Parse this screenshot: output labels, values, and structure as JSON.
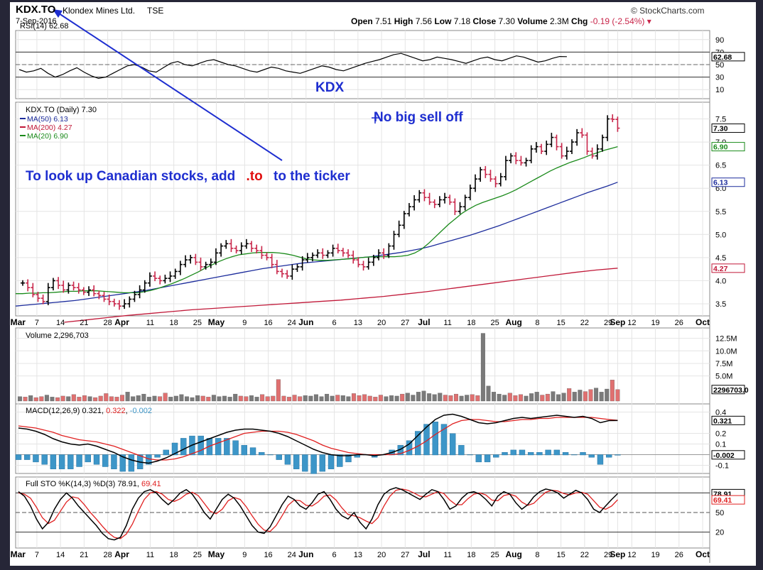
{
  "header": {
    "ticker": "KDX.TO",
    "company": "Klondex Mines Ltd.",
    "exchange": "TSE",
    "date": "7-Sep-2016",
    "watermark": "© StockCharts.com",
    "quote": {
      "open_label": "Open",
      "open": "7.51",
      "high_label": "High",
      "high": "7.56",
      "low_label": "Low",
      "low": "7.18",
      "close_label": "Close",
      "close": "7.30",
      "volume_label": "Volume",
      "volume": "2.3M",
      "chg_label": "Chg",
      "chg": "-0.19 (-2.54%)",
      "chg_arrow": "▾"
    }
  },
  "annotations": {
    "kdx_label": "KDX",
    "no_sell_off": "No big sell off",
    "canadian_tip_1": "To look up Canadian stocks, add",
    "canadian_tip_suffix": ".to",
    "canadian_tip_2": "to the ticker"
  },
  "colors": {
    "price_up": "#000000",
    "price_down": "#c8264a",
    "ma50": "#1c2c9c",
    "ma200": "#c01838",
    "ma20": "#1a8a1a",
    "volume_up": "#7a7a7a",
    "volume_down": "#e07070",
    "macd_hist": "#3d96c8",
    "annotation_blue": "#1e2ed0",
    "annotation_red": "#e01010"
  },
  "chart_data": [
    {
      "type": "line",
      "panel": "rsi",
      "title": "RSI(14) 62.68",
      "ylim": [
        0,
        100
      ],
      "tick_labels": [
        "90",
        "70",
        "50",
        "30",
        "10"
      ],
      "tick_values": [
        90,
        70,
        50,
        30,
        10
      ],
      "reference_lines": [
        70,
        30
      ],
      "last_value": 62.68,
      "last_label": "62.68",
      "values": [
        42,
        38,
        40,
        44,
        36,
        30,
        34,
        40,
        45,
        38,
        32,
        28,
        30,
        36,
        42,
        48,
        50,
        46,
        40,
        38,
        45,
        52,
        55,
        50,
        48,
        52,
        56,
        58,
        54,
        50,
        48,
        44,
        40,
        38,
        42,
        46,
        44,
        40,
        38,
        36,
        40,
        44,
        48,
        46,
        42,
        40,
        44,
        48,
        52,
        55,
        58,
        62,
        66,
        68,
        64,
        60,
        56,
        58,
        62,
        60,
        58,
        55,
        52,
        56,
        60,
        62,
        58,
        56,
        60,
        64,
        62,
        58,
        54,
        56,
        60,
        63,
        62.68
      ]
    },
    {
      "type": "line",
      "panel": "price",
      "title": "KDX.TO (Daily) 7.30",
      "legend": [
        {
          "name": "MA(50) 6.13",
          "color": "#1c2c9c"
        },
        {
          "name": "MA(200) 4.27",
          "color": "#c01838"
        },
        {
          "name": "MA(20) 6.90",
          "color": "#1a8a1a"
        }
      ],
      "ylim": [
        3.3,
        7.8
      ],
      "tick_labels": [
        "7.5",
        "7.0",
        "6.5",
        "6.0",
        "5.5",
        "5.0",
        "4.5",
        "4.0",
        "3.5"
      ],
      "tick_values": [
        7.5,
        7.0,
        6.5,
        6.0,
        5.5,
        5.0,
        4.5,
        4.0,
        3.5
      ],
      "last_labels": [
        {
          "label": "7.30",
          "value": 7.3,
          "color": "#000000"
        },
        {
          "label": "6.90",
          "value": 6.9,
          "color": "#1a8a1a"
        },
        {
          "label": "6.13",
          "value": 6.13,
          "color": "#1c2c9c"
        },
        {
          "label": "4.27",
          "value": 4.27,
          "color": "#c01838"
        }
      ],
      "x_labels": [
        "Mar",
        "7",
        "14",
        "21",
        "28",
        "Apr",
        "11",
        "18",
        "25",
        "May",
        "9",
        "16",
        "24",
        "Jun",
        "6",
        "13",
        "20",
        "27",
        "Jul",
        "11",
        "18",
        "25",
        "Aug",
        "8",
        "15",
        "22",
        "29",
        "Sep",
        "12",
        "19",
        "26",
        "Oct"
      ],
      "x_label_index": [
        0,
        4,
        9,
        14,
        19,
        22,
        28,
        33,
        38,
        42,
        48,
        53,
        58,
        61,
        67,
        72,
        77,
        82,
        86,
        91,
        96,
        101,
        105,
        110,
        115,
        120,
        125,
        127,
        130,
        135,
        140,
        145
      ],
      "n_slots": 147,
      "close": [
        3.95,
        3.85,
        3.7,
        3.62,
        3.55,
        3.85,
        4.0,
        3.9,
        3.8,
        3.9,
        3.85,
        3.8,
        3.75,
        3.8,
        3.72,
        3.68,
        3.6,
        3.55,
        3.5,
        3.45,
        3.5,
        3.6,
        3.7,
        3.8,
        3.95,
        4.1,
        4.05,
        4.0,
        4.05,
        4.1,
        4.2,
        4.35,
        4.45,
        4.5,
        4.4,
        4.3,
        4.35,
        4.4,
        4.6,
        4.75,
        4.8,
        4.7,
        4.65,
        4.75,
        4.8,
        4.7,
        4.65,
        4.55,
        4.5,
        4.35,
        4.2,
        4.15,
        4.1,
        4.25,
        4.3,
        4.45,
        4.5,
        4.55,
        4.6,
        4.55,
        4.6,
        4.7,
        4.65,
        4.6,
        4.55,
        4.45,
        4.35,
        4.3,
        4.4,
        4.5,
        4.6,
        4.55,
        4.75,
        5.0,
        5.2,
        5.45,
        5.6,
        5.75,
        5.9,
        5.8,
        5.7,
        5.65,
        5.75,
        5.8,
        5.7,
        5.5,
        5.6,
        5.8,
        6.0,
        6.2,
        6.4,
        6.3,
        6.2,
        6.1,
        6.25,
        6.6,
        6.7,
        6.6,
        6.55,
        6.6,
        6.85,
        6.9,
        6.8,
        6.95,
        7.1,
        6.9,
        6.7,
        6.8,
        7.0,
        7.2,
        7.15,
        6.8,
        6.7,
        6.85,
        7.1,
        7.5,
        7.49,
        7.3
      ],
      "ma20": [
        3.72,
        3.72,
        3.73,
        3.73,
        3.74,
        3.74,
        3.75,
        3.76,
        3.77,
        3.77,
        3.78,
        3.78,
        3.78,
        3.77,
        3.76,
        3.75,
        3.74,
        3.74,
        3.74,
        3.76,
        3.79,
        3.83,
        3.88,
        3.93,
        3.99,
        4.05,
        4.12,
        4.19,
        4.27,
        4.34,
        4.41,
        4.47,
        4.52,
        4.56,
        4.58,
        4.6,
        4.61,
        4.61,
        4.61,
        4.6,
        4.58,
        4.55,
        4.51,
        4.47,
        4.45,
        4.44,
        4.44,
        4.45,
        4.46,
        4.47,
        4.48,
        4.5,
        4.51,
        4.52,
        4.52,
        4.52,
        4.52,
        4.53,
        4.55,
        4.6,
        4.68,
        4.8,
        4.94,
        5.08,
        5.22,
        5.34,
        5.46,
        5.55,
        5.63,
        5.69,
        5.74,
        5.79,
        5.84,
        5.9,
        5.97,
        6.05,
        6.13,
        6.21,
        6.29,
        6.37,
        6.44,
        6.5,
        6.56,
        6.61,
        6.66,
        6.72,
        6.77,
        6.82,
        6.86,
        6.9
      ],
      "ma50": [
        3.45,
        3.47,
        3.49,
        3.51,
        3.53,
        3.55,
        3.57,
        3.6,
        3.63,
        3.66,
        3.69,
        3.72,
        3.75,
        3.78,
        3.82,
        3.86,
        3.9,
        3.94,
        3.98,
        4.02,
        4.06,
        4.1,
        4.14,
        4.18,
        4.22,
        4.26,
        4.29,
        4.32,
        4.35,
        4.38,
        4.4,
        4.42,
        4.44,
        4.46,
        4.48,
        4.5,
        4.52,
        4.55,
        4.58,
        4.61,
        4.65,
        4.69,
        4.74,
        4.8,
        4.86,
        4.92,
        4.98,
        5.05,
        5.12,
        5.19,
        5.27,
        5.35,
        5.43,
        5.51,
        5.59,
        5.67,
        5.75,
        5.83,
        5.91,
        5.98,
        6.05,
        6.13
      ],
      "ma200": [
        3.1,
        3.15,
        3.2,
        3.25,
        3.29,
        3.33,
        3.37,
        3.4,
        3.43,
        3.46,
        3.49,
        3.52,
        3.55,
        3.58,
        3.62,
        3.66,
        3.71,
        3.76,
        3.82,
        3.88,
        3.94,
        4.0,
        4.06,
        4.12,
        4.18,
        4.23,
        4.27
      ]
    },
    {
      "type": "bar",
      "panel": "volume",
      "title": "Volume 2,296,703",
      "ylim": [
        0,
        14000000
      ],
      "tick_labels": [
        "12.5M",
        "10.0M",
        "7.5M",
        "5.0M"
      ],
      "tick_values": [
        12500000,
        10000000,
        7500000,
        5000000
      ],
      "last_label": "2296703.0",
      "values": [
        0.9,
        0.8,
        1.1,
        0.7,
        0.9,
        1.2,
        0.8,
        0.7,
        1.0,
        0.9,
        1.3,
        0.8,
        1.1,
        0.9,
        0.7,
        1.0,
        1.5,
        0.9,
        0.8,
        1.2,
        1.8,
        0.9,
        1.1,
        1.4,
        0.8,
        1.0,
        0.9,
        1.6,
        0.8,
        1.0,
        1.3,
        0.9,
        0.7,
        1.1,
        1.0,
        0.8,
        1.2,
        0.9,
        1.0,
        0.8,
        1.4,
        1.0,
        0.9,
        1.1,
        0.8,
        1.3,
        0.9,
        1.0,
        4.3,
        1.0,
        0.8,
        1.2,
        0.9,
        1.1,
        1.0,
        1.3,
        0.9,
        1.4,
        1.0,
        1.2,
        1.1,
        0.9,
        1.5,
        1.1,
        1.3,
        1.0,
        0.8,
        1.2,
        0.9,
        1.1,
        1.0,
        1.4,
        1.6,
        1.2,
        1.8,
        2.0,
        1.5,
        1.3,
        1.6,
        1.2,
        1.1,
        1.4,
        1.0,
        1.2,
        1.3,
        1.1,
        13.5,
        3.0,
        1.8,
        1.4,
        1.2,
        1.6,
        1.1,
        1.3,
        1.0,
        1.5,
        1.8,
        1.2,
        1.4,
        1.9,
        1.3,
        1.6,
        2.5,
        1.8,
        2.2,
        1.9,
        2.3,
        2.6,
        1.8,
        2.4,
        4.2,
        2.3
      ],
      "up": [
        1,
        0,
        1,
        0,
        0,
        1,
        1,
        0,
        0,
        1,
        0,
        0,
        0,
        1,
        0,
        0,
        0,
        0,
        0,
        0,
        1,
        1,
        1,
        1,
        1,
        1,
        0,
        0,
        1,
        1,
        1,
        1,
        1,
        1,
        0,
        0,
        1,
        1,
        1,
        1,
        1,
        0,
        0,
        1,
        1,
        0,
        0,
        0,
        0,
        0,
        0,
        0,
        0,
        1,
        1,
        1,
        1,
        1,
        1,
        0,
        1,
        1,
        0,
        0,
        0,
        0,
        0,
        0,
        1,
        1,
        1,
        0,
        1,
        1,
        1,
        1,
        1,
        1,
        1,
        0,
        0,
        0,
        1,
        1,
        0,
        0,
        1,
        1,
        1,
        1,
        1,
        0,
        0,
        0,
        1,
        1,
        1,
        0,
        0,
        1,
        1,
        1,
        0,
        1,
        1,
        0,
        0,
        1,
        1,
        1,
        0,
        0,
        0,
        1,
        1,
        1,
        0,
        0
      ]
    },
    {
      "type": "line",
      "panel": "macd",
      "title": "MACD(12,26,9) 0.321, 0.322, -0.002",
      "title_parts": [
        "MACD(12,26,9) 0.321, ",
        "0.322",
        ", ",
        "-0.002"
      ],
      "ylim": [
        -0.15,
        0.45
      ],
      "tick_labels": [
        "0.4",
        "0.2",
        "0.1",
        "-0.1"
      ],
      "tick_values": [
        0.4,
        0.2,
        0.1,
        -0.1
      ],
      "last_labels": [
        {
          "label": "0.321",
          "value": 0.321
        },
        {
          "label": "-0.002",
          "value": -0.002
        }
      ],
      "macd": [
        0.25,
        0.24,
        0.22,
        0.19,
        0.15,
        0.12,
        0.1,
        0.09,
        0.1,
        0.08,
        0.05,
        0.02,
        -0.02,
        -0.05,
        -0.07,
        -0.08,
        -0.06,
        -0.03,
        0.01,
        0.05,
        0.09,
        0.12,
        0.15,
        0.18,
        0.21,
        0.23,
        0.24,
        0.24,
        0.23,
        0.22,
        0.2,
        0.17,
        0.13,
        0.09,
        0.05,
        0.02,
        0.0,
        -0.01,
        -0.01,
        0.0,
        0.0,
        -0.01,
        0.0,
        0.02,
        0.05,
        0.1,
        0.18,
        0.26,
        0.33,
        0.37,
        0.38,
        0.36,
        0.33,
        0.3,
        0.29,
        0.3,
        0.32,
        0.34,
        0.35,
        0.34,
        0.35,
        0.36,
        0.37,
        0.36,
        0.35,
        0.36,
        0.34,
        0.3,
        0.32,
        0.321
      ],
      "signal": [
        0.27,
        0.26,
        0.25,
        0.23,
        0.21,
        0.18,
        0.16,
        0.14,
        0.13,
        0.12,
        0.1,
        0.08,
        0.05,
        0.02,
        -0.01,
        -0.04,
        -0.05,
        -0.05,
        -0.04,
        -0.02,
        0.01,
        0.04,
        0.08,
        0.11,
        0.14,
        0.17,
        0.2,
        0.21,
        0.22,
        0.22,
        0.22,
        0.21,
        0.19,
        0.16,
        0.13,
        0.09,
        0.06,
        0.04,
        0.02,
        0.01,
        0.0,
        0.0,
        0.0,
        0.0,
        0.01,
        0.04,
        0.08,
        0.13,
        0.19,
        0.24,
        0.29,
        0.32,
        0.33,
        0.33,
        0.32,
        0.31,
        0.31,
        0.32,
        0.33,
        0.33,
        0.34,
        0.34,
        0.35,
        0.35,
        0.35,
        0.35,
        0.35,
        0.34,
        0.33,
        0.322
      ]
    },
    {
      "type": "line",
      "panel": "stochastic",
      "title": "Full STO %K(14,3) %D(3) 78.91, 69.41",
      "title_parts": [
        "Full STO %K(14,3) %D(3) 78.91, ",
        "69.41"
      ],
      "ylim": [
        0,
        100
      ],
      "tick_labels": [
        "80",
        "50",
        "20"
      ],
      "tick_values": [
        80,
        50,
        20
      ],
      "reference_lines": [
        80,
        50,
        20
      ],
      "last_labels": [
        {
          "label": "78.91",
          "value": 78.91
        },
        {
          "label": "69.41",
          "value": 69.41
        }
      ],
      "k": [
        82,
        75,
        60,
        40,
        25,
        35,
        55,
        70,
        80,
        72,
        60,
        50,
        40,
        30,
        18,
        10,
        8,
        12,
        30,
        55,
        72,
        82,
        85,
        80,
        70,
        62,
        70,
        80,
        85,
        78,
        65,
        50,
        40,
        55,
        70,
        78,
        72,
        60,
        45,
        30,
        20,
        18,
        28,
        45,
        62,
        75,
        70,
        60,
        55,
        65,
        78,
        82,
        70,
        55,
        45,
        40,
        50,
        35,
        25,
        40,
        62,
        78,
        85,
        88,
        85,
        80,
        75,
        70,
        78,
        85,
        82,
        70,
        55,
        60,
        72,
        80,
        82,
        78,
        70,
        60,
        75,
        82,
        78,
        65,
        55,
        62,
        74,
        82,
        86,
        84,
        80,
        72,
        78,
        84,
        80,
        70,
        55,
        50,
        60,
        70,
        78.91
      ],
      "d": [
        80,
        78,
        72,
        58,
        42,
        33,
        38,
        52,
        66,
        74,
        72,
        62,
        50,
        40,
        29,
        19,
        12,
        10,
        17,
        32,
        52,
        70,
        80,
        82,
        78,
        70,
        67,
        71,
        78,
        81,
        76,
        64,
        52,
        48,
        55,
        68,
        73,
        70,
        59,
        45,
        32,
        23,
        21,
        30,
        45,
        61,
        69,
        68,
        61,
        60,
        66,
        75,
        77,
        69,
        57,
        47,
        45,
        42,
        37,
        33,
        42,
        60,
        75,
        84,
        86,
        84,
        80,
        75,
        74,
        78,
        82,
        79,
        69,
        62,
        62,
        71,
        78,
        80,
        77,
        69,
        68,
        76,
        78,
        75,
        66,
        61,
        64,
        73,
        81,
        84,
        83,
        79,
        77,
        80,
        81,
        78,
        68,
        58,
        55,
        60,
        69.41
      ]
    }
  ]
}
